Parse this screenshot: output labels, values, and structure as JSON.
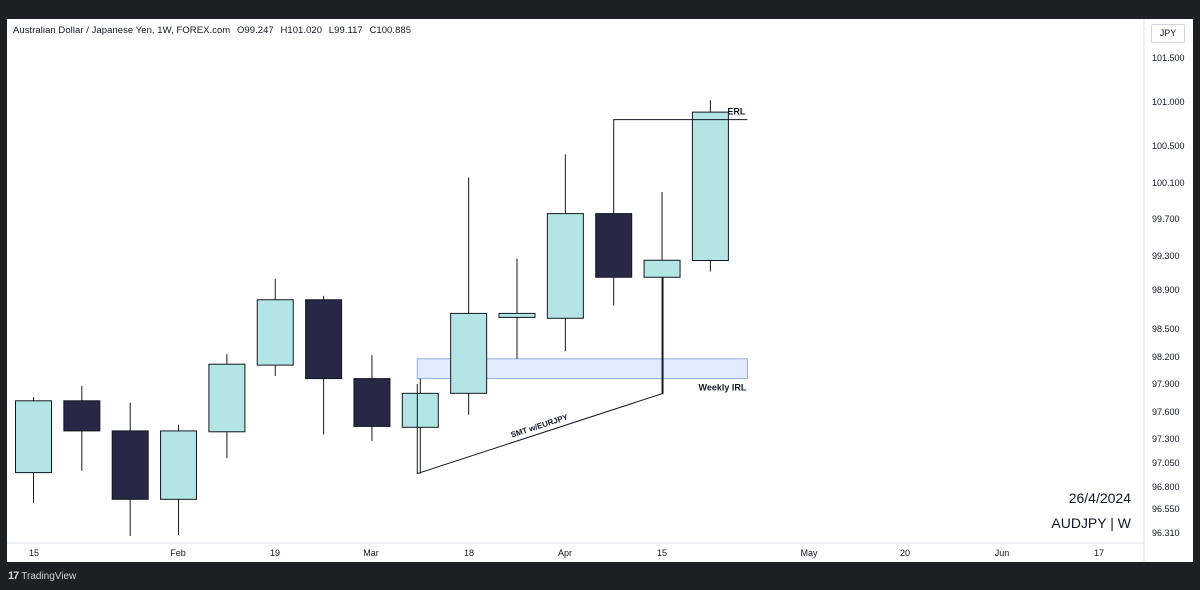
{
  "header": {
    "symbol": "Australian Dollar / Japanese Yen, 1W, FOREX.com",
    "open": "O99.247",
    "high": "H101.020",
    "low": "L99.117",
    "close": "C100.885"
  },
  "currency_button": "JPY",
  "watermark": {
    "date": "26/4/2024",
    "ticker": "AUDJPY | W"
  },
  "footer": {
    "logo": "17",
    "brand": "TradingView"
  },
  "colors": {
    "bull_fill": "#b2e5e3",
    "bear_fill": "#272746",
    "outline": "#131722",
    "zone_fill": "#e2ebfb",
    "zone_border": "#8fb0ee",
    "background": "#ffffff",
    "chrome": "#1e1f22"
  },
  "chart_data": {
    "type": "candlestick",
    "title": "",
    "xlabel": "",
    "ylabel": "",
    "y_ticks": [
      "101.500",
      "101.000",
      "100.500",
      "100.100",
      "99.700",
      "99.300",
      "98.900",
      "98.500",
      "98.200",
      "97.900",
      "97.600",
      "97.300",
      "97.050",
      "96.800",
      "96.550",
      "96.310"
    ],
    "x_ticks": [
      "15",
      "Feb",
      "19",
      "Mar",
      "18",
      "Apr",
      "15",
      "May",
      "20",
      "Jun",
      "17"
    ],
    "candles": [
      {
        "o": 96.95,
        "h": 97.76,
        "l": 96.62,
        "c": 97.72
      },
      {
        "o": 97.72,
        "h": 97.88,
        "l": 96.97,
        "c": 97.39
      },
      {
        "o": 97.39,
        "h": 97.7,
        "l": 96.28,
        "c": 96.66
      },
      {
        "o": 96.66,
        "h": 97.46,
        "l": 96.29,
        "c": 97.39
      },
      {
        "o": 97.38,
        "h": 98.23,
        "l": 97.1,
        "c": 98.12
      },
      {
        "o": 98.11,
        "h": 99.03,
        "l": 97.99,
        "c": 98.8
      },
      {
        "o": 98.8,
        "h": 98.84,
        "l": 97.35,
        "c": 97.96
      },
      {
        "o": 97.96,
        "h": 98.22,
        "l": 97.28,
        "c": 97.44
      },
      {
        "o": 97.43,
        "h": 97.96,
        "l": 96.94,
        "c": 97.8
      },
      {
        "o": 97.8,
        "h": 100.16,
        "l": 97.57,
        "c": 98.66
      },
      {
        "o": 98.62,
        "h": 99.27,
        "l": 98.18,
        "c": 98.66
      },
      {
        "o": 98.61,
        "h": 100.41,
        "l": 98.26,
        "c": 99.76
      },
      {
        "o": 99.76,
        "h": 99.75,
        "l": 98.74,
        "c": 99.05
      },
      {
        "o": 99.05,
        "h": 100.0,
        "l": 97.8,
        "c": 99.25
      },
      {
        "o": 99.247,
        "h": 101.02,
        "l": 99.117,
        "c": 100.885
      }
    ],
    "annotations": {
      "erl_label": "ERL",
      "erl_price": 100.8,
      "zone_label": "Weekly IRL",
      "zone_low": 97.96,
      "zone_high": 98.18,
      "smt_label": "SMT w/EURJPY",
      "smt_from_price": 96.94,
      "smt_to_price": 97.8
    }
  }
}
